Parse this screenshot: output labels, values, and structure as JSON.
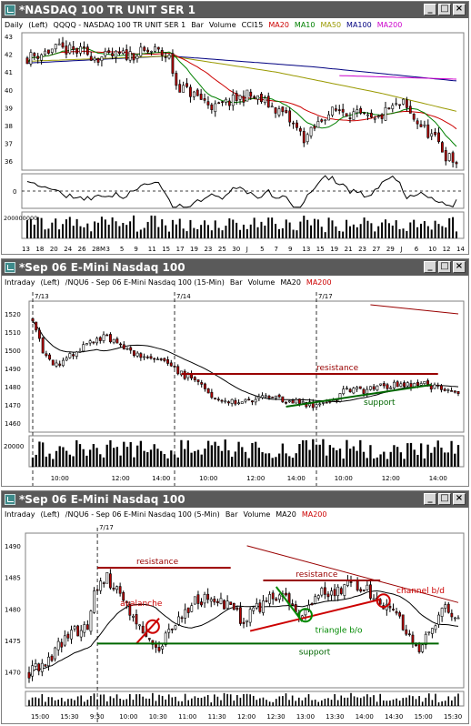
{
  "windows": [
    {
      "title": "*NASDAQ 100 TR UNIT SER 1",
      "header": [
        {
          "text": "Daily",
          "color": "#000000"
        },
        {
          "text": "(Left)",
          "color": "#000000"
        },
        {
          "text": "QQQQ - NASDAQ 100 TR UNIT SER 1",
          "color": "#000000"
        },
        {
          "text": "Bar",
          "color": "#000000"
        },
        {
          "text": "Volume",
          "color": "#000000"
        },
        {
          "text": "CCI15",
          "color": "#000000"
        },
        {
          "text": "MA20",
          "color": "#cc0000"
        },
        {
          "text": "MA10",
          "color": "#008000"
        },
        {
          "text": "MA50",
          "color": "#999900"
        },
        {
          "text": "MA100",
          "color": "#000080"
        },
        {
          "text": "MA200",
          "color": "#cc00cc"
        }
      ]
    },
    {
      "title": "*Sep 06  E-Mini Nasdaq 100",
      "header": [
        {
          "text": "Intraday",
          "color": "#000000"
        },
        {
          "text": "(Left)",
          "color": "#000000"
        },
        {
          "text": "/NQU6 - Sep 06  E-Mini Nasdaq 100 (15-Min)",
          "color": "#000000"
        },
        {
          "text": "Bar",
          "color": "#000000"
        },
        {
          "text": "Volume",
          "color": "#000000"
        },
        {
          "text": "MA20",
          "color": "#000000"
        },
        {
          "text": "MA200",
          "color": "#cc0000"
        }
      ]
    },
    {
      "title": "*Sep 06  E-Mini Nasdaq 100",
      "header": [
        {
          "text": "Intraday",
          "color": "#000000"
        },
        {
          "text": "(Left)",
          "color": "#000000"
        },
        {
          "text": "/NQU6 - Sep 06  E-Mini Nasdaq 100 (5-Min)",
          "color": "#000000"
        },
        {
          "text": "Bar",
          "color": "#000000"
        },
        {
          "text": "Volume",
          "color": "#000000"
        },
        {
          "text": "MA20",
          "color": "#000000"
        },
        {
          "text": "MA200",
          "color": "#cc0000"
        }
      ]
    }
  ],
  "chart_data": [
    {
      "type": "candlestick",
      "title": "QQQQ - NASDAQ 100 TR UNIT SER 1",
      "interval": "Daily",
      "ylim": [
        35.5,
        43.2
      ],
      "yticks": [
        36,
        37,
        38,
        39,
        40,
        41,
        42,
        43
      ],
      "x_tick_labels": [
        "13",
        "18",
        "20",
        "24",
        "26",
        "28M",
        "3",
        "5",
        "9",
        "11",
        "15",
        "17",
        "19",
        "23",
        "25",
        "30",
        "J",
        "5",
        "7",
        "9",
        "13",
        "15",
        "19",
        "21",
        "23",
        "27",
        "29",
        "J",
        "6",
        "10",
        "12",
        "14"
      ],
      "price_start": 41.8,
      "price_path": [
        [
          0,
          41.8
        ],
        [
          8,
          42.3
        ],
        [
          16,
          42.1
        ],
        [
          20,
          41.8
        ],
        [
          25,
          41.9
        ],
        [
          30,
          42.0
        ],
        [
          36,
          42.2
        ],
        [
          40,
          41.8
        ],
        [
          42,
          40.3
        ],
        [
          48,
          39.6
        ],
        [
          53,
          39.0
        ],
        [
          58,
          39.4
        ],
        [
          62,
          39.7
        ],
        [
          66,
          39.4
        ],
        [
          72,
          38.7
        ],
        [
          76,
          37.8
        ],
        [
          78,
          37.3
        ],
        [
          80,
          37.6
        ],
        [
          84,
          38.6
        ],
        [
          88,
          38.9
        ],
        [
          94,
          38.5
        ],
        [
          98,
          38.2
        ],
        [
          102,
          38.9
        ],
        [
          106,
          39.2
        ],
        [
          108,
          38.6
        ],
        [
          112,
          37.8
        ],
        [
          116,
          37.0
        ],
        [
          118,
          36.3
        ],
        [
          121,
          35.9
        ]
      ],
      "bar_count": 122,
      "ma_series": [
        {
          "name": "MA20",
          "color": "#cc0000",
          "start": 0
        },
        {
          "name": "MA10",
          "color": "#008000",
          "start": 0
        },
        {
          "name": "MA50",
          "color": "#999900",
          "start": 0
        },
        {
          "name": "MA100",
          "color": "#000080",
          "start": 0
        },
        {
          "name": "MA200",
          "color": "#cc00cc",
          "start": 88
        }
      ],
      "ma_levels": {
        "MA50": [
          [
            0,
            41.6
          ],
          [
            40,
            41.9
          ],
          [
            70,
            41.0
          ],
          [
            100,
            39.8
          ],
          [
            121,
            38.8
          ]
        ],
        "MA100": [
          [
            0,
            41.5
          ],
          [
            40,
            41.9
          ],
          [
            80,
            41.3
          ],
          [
            121,
            40.5
          ]
        ],
        "MA200": [
          [
            88,
            40.8
          ],
          [
            121,
            40.6
          ]
        ]
      },
      "cci": {
        "yticks": [
          0
        ],
        "ylim": [
          -150,
          150
        ]
      },
      "volume": {
        "ytick_label": "200000000",
        "ylim": [
          0,
          300000000
        ]
      }
    },
    {
      "type": "candlestick",
      "title": "/NQU6 - Sep 06  E-Mini Nasdaq 100 (15-Min)",
      "interval": "15-Min",
      "ylim": [
        1455,
        1527
      ],
      "yticks": [
        1460,
        1470,
        1480,
        1490,
        1500,
        1510,
        1520
      ],
      "x_tick_labels": [
        "10:00",
        "12:00",
        "14:00",
        "10:00",
        "12:00",
        "14:00",
        "10:00",
        "12:00",
        "14:00"
      ],
      "session_labels": [
        "7/13",
        "7/14",
        "7/17"
      ],
      "price_path": [
        [
          0,
          1518
        ],
        [
          3,
          1500
        ],
        [
          6,
          1492
        ],
        [
          10,
          1495
        ],
        [
          15,
          1502
        ],
        [
          20,
          1507
        ],
        [
          24,
          1506
        ],
        [
          28,
          1500
        ],
        [
          34,
          1496
        ],
        [
          40,
          1492
        ],
        [
          46,
          1485
        ],
        [
          50,
          1480
        ],
        [
          54,
          1474
        ],
        [
          58,
          1471
        ],
        [
          64,
          1472
        ],
        [
          70,
          1474
        ],
        [
          76,
          1473
        ],
        [
          82,
          1470
        ],
        [
          86,
          1471
        ],
        [
          90,
          1474
        ],
        [
          92,
          1478
        ],
        [
          98,
          1478
        ],
        [
          104,
          1480
        ],
        [
          110,
          1481
        ],
        [
          116,
          1481
        ],
        [
          120,
          1479
        ],
        [
          126,
          1478
        ]
      ],
      "bar_count": 127,
      "annotations": [
        {
          "text": "resistance",
          "color": "#990000",
          "level": 1487
        },
        {
          "text": "support",
          "color": "#006600",
          "trend_from": [
            75,
            1469
          ],
          "trend_to": [
            118,
            1481
          ]
        }
      ],
      "ma_series": [
        {
          "name": "MA20",
          "color": "#000000"
        },
        {
          "name": "MA200",
          "color": "#990000"
        }
      ],
      "ma200_segment": [
        [
          100,
          1525
        ],
        [
          126,
          1520
        ]
      ],
      "volume": {
        "ytick_label": "20000",
        "ylim": [
          0,
          30000
        ]
      }
    },
    {
      "type": "candlestick",
      "title": "/NQU6 - Sep 06  E-Mini Nasdaq 100 (5-Min)",
      "interval": "5-Min",
      "ylim": [
        1467.5,
        1492
      ],
      "yticks": [
        1470,
        1475,
        1480,
        1485,
        1490
      ],
      "x_tick_labels": [
        "15:00",
        "15:30",
        "9:30",
        "10:00",
        "10:30",
        "11:00",
        "11:30",
        "12:00",
        "12:30",
        "13:00",
        "13:30",
        "14:00",
        "14:30",
        "15:00",
        "15:30"
      ],
      "session_labels": [
        "7/17"
      ],
      "price_path": [
        [
          0,
          1470
        ],
        [
          6,
          1472
        ],
        [
          12,
          1476
        ],
        [
          18,
          1477
        ],
        [
          20,
          1482
        ],
        [
          24,
          1485
        ],
        [
          28,
          1482
        ],
        [
          32,
          1479
        ],
        [
          36,
          1476
        ],
        [
          40,
          1474
        ],
        [
          44,
          1477
        ],
        [
          50,
          1481
        ],
        [
          56,
          1482
        ],
        [
          62,
          1480
        ],
        [
          66,
          1478
        ],
        [
          72,
          1481
        ],
        [
          78,
          1482
        ],
        [
          84,
          1479
        ],
        [
          88,
          1482
        ],
        [
          94,
          1483
        ],
        [
          100,
          1484
        ],
        [
          104,
          1483
        ],
        [
          108,
          1481
        ],
        [
          112,
          1480
        ],
        [
          116,
          1476
        ],
        [
          120,
          1474
        ],
        [
          124,
          1477
        ],
        [
          128,
          1480
        ],
        [
          132,
          1479
        ]
      ],
      "bar_count": 133,
      "annotations": [
        {
          "text": "resistance",
          "color": "#990000",
          "level": 1486.5
        },
        {
          "text": "resistance",
          "color": "#990000",
          "level": 1484.5
        },
        {
          "text": "avalanche",
          "color": "#cc0000"
        },
        {
          "text": "channel b/d",
          "color": "#cc0000"
        },
        {
          "text": "triangle b/o",
          "color": "#008800"
        },
        {
          "text": "support",
          "color": "#006600",
          "level": 1474.5
        }
      ],
      "ma_series": [
        {
          "name": "MA20",
          "color": "#000000"
        },
        {
          "name": "MA200",
          "color": "#990000"
        }
      ],
      "ma200_segment": [
        [
          67,
          1490
        ],
        [
          132,
          1481
        ]
      ],
      "volume": {
        "ylim": [
          0,
          30000
        ]
      }
    }
  ]
}
